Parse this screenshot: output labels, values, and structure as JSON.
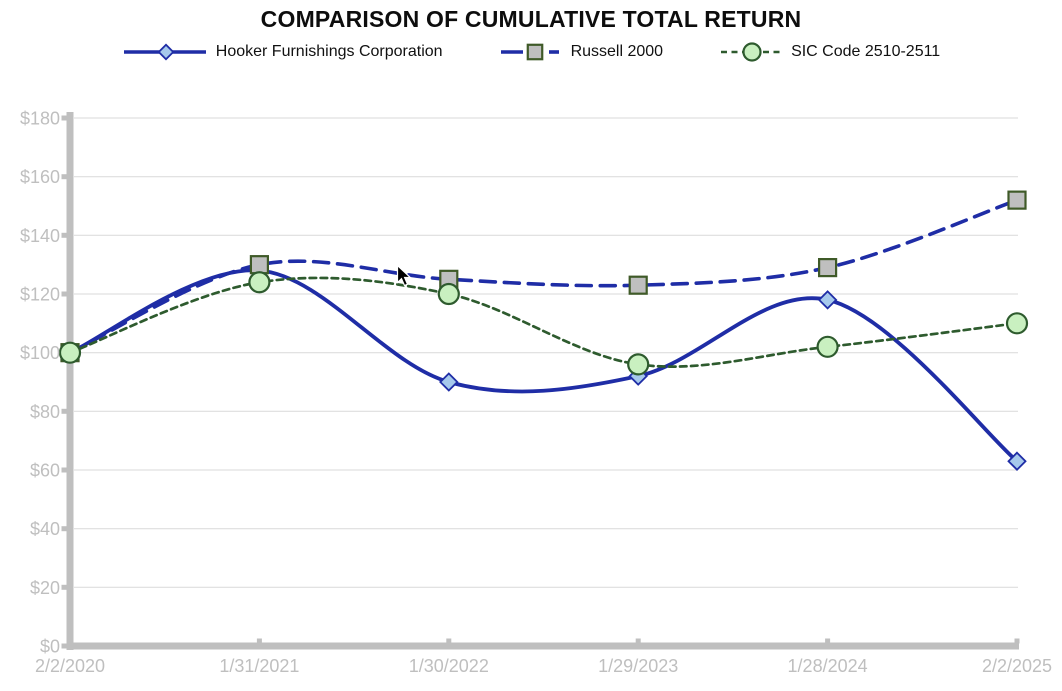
{
  "title": "COMPARISON OF CUMULATIVE TOTAL RETURN",
  "colors": {
    "navy_line": "#1F2DA6",
    "green_line": "#2E5B2E",
    "diamond_fill": "#A6C9EC",
    "square_fill": "#BFBFBF",
    "square_stroke": "#3F5A28",
    "circle_fill": "#C9F0C0",
    "axis": "#BFBFBF",
    "gridline": "#D9D9D9",
    "tick_label": "#BFBFBF",
    "title_text": "#0D0D0D",
    "legend_text": "#111111"
  },
  "chart_data": {
    "type": "line",
    "title": "COMPARISON OF CUMULATIVE TOTAL RETURN",
    "categories": [
      "2/2/2020",
      "1/31/2021",
      "1/30/2022",
      "1/29/2023",
      "1/28/2024",
      "2/2/2025"
    ],
    "series": [
      {
        "name": "Hooker Furnishings Corporation",
        "values": [
          100,
          128,
          90,
          92,
          118,
          63
        ],
        "color": "#1F2DA6",
        "dash": "solid",
        "marker": "diamond",
        "marker_fill": "#A6C9EC",
        "marker_stroke": "#1F2DA6"
      },
      {
        "name": "Russell 2000",
        "values": [
          100,
          130,
          125,
          123,
          129,
          152
        ],
        "color": "#1F2DA6",
        "dash": "long-dash",
        "marker": "square",
        "marker_fill": "#BFBFBF",
        "marker_stroke": "#3F5A28"
      },
      {
        "name": "SIC Code 2510-2511",
        "values": [
          100,
          124,
          120,
          96,
          102,
          110
        ],
        "color": "#2E5B2E",
        "dash": "short-dash",
        "marker": "circle",
        "marker_fill": "#C9F0C0",
        "marker_stroke": "#2E5B2E"
      }
    ],
    "ylim": [
      0,
      180
    ],
    "ytick_step": 20,
    "ytick_labels": [
      "$0",
      "$20",
      "$40",
      "$60",
      "$80",
      "$100",
      "$120",
      "$140",
      "$160",
      "$180"
    ],
    "xlabel": "",
    "ylabel": "",
    "grid": "horizontal",
    "legend_position": "top",
    "smooth_lines": true
  }
}
